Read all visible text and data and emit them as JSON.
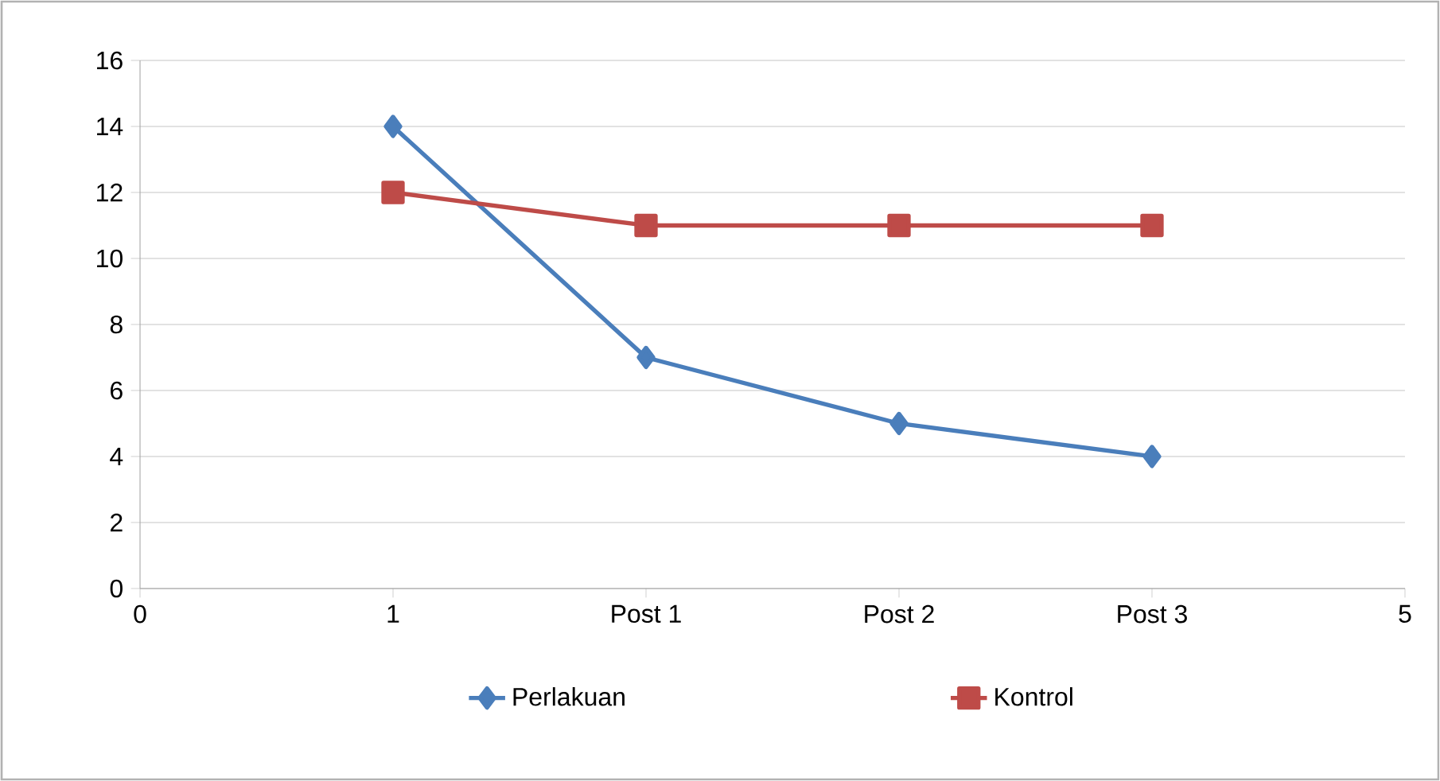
{
  "chart_data": {
    "type": "line",
    "xlim": [
      0,
      5
    ],
    "xticks": [
      0,
      1,
      {
        "value": 2,
        "label": "Post 1"
      },
      {
        "value": 3,
        "label": "Post 2"
      },
      {
        "value": 4,
        "label": "Post 3"
      },
      5
    ],
    "ylim": [
      0,
      16
    ],
    "yticks": [
      0,
      2,
      4,
      6,
      8,
      10,
      12,
      14,
      16
    ],
    "grid": "y",
    "legend": "bottom",
    "line_style": "solid",
    "series": [
      {
        "name": "Perlakuan",
        "color": "#4a7ebb",
        "marker": "diamond",
        "x": [
          1,
          2,
          3,
          4
        ],
        "values": [
          14,
          7,
          5,
          4
        ]
      },
      {
        "name": "Kontrol",
        "color": "#be4b48",
        "marker": "square",
        "x": [
          1,
          2,
          3,
          4
        ],
        "values": [
          12,
          11,
          11,
          11
        ]
      }
    ]
  }
}
